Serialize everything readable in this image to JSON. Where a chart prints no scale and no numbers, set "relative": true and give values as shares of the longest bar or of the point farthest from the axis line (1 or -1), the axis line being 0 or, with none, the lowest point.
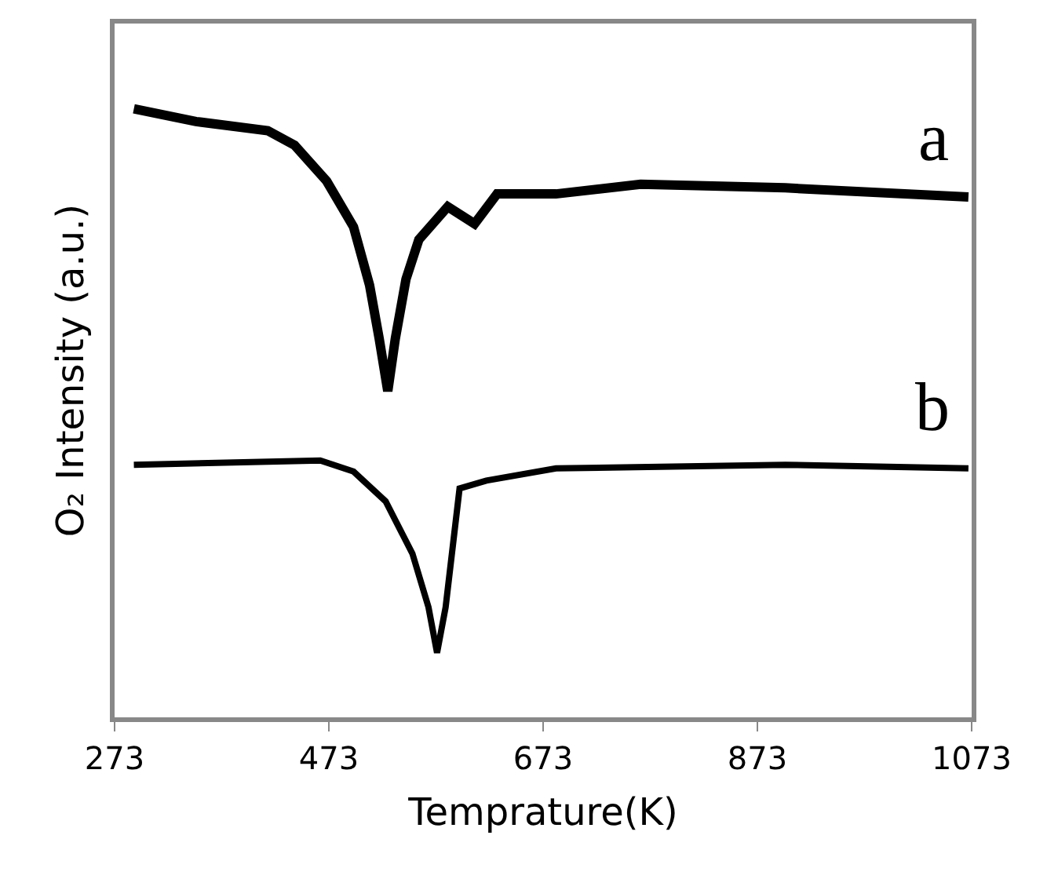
{
  "chart_data": {
    "type": "line",
    "relative": true,
    "xlabel": "Temprature(K)",
    "ylabel": "O₂ Intensity (a.u.)",
    "xlim": [
      273,
      1073
    ],
    "xticks": [
      273,
      473,
      673,
      873,
      1073
    ],
    "legend": false,
    "marker": "none",
    "line_style": "solid",
    "series": [
      {
        "name": "a",
        "color": "#000000",
        "x": [
          291,
          349,
          416,
          441,
          471,
          496,
          511,
          520,
          528,
          535,
          545,
          557,
          584,
          609,
          630,
          685,
          764,
          899,
          1070
        ],
        "values": [
          1,
          0.979,
          0.964,
          0.94,
          0.881,
          0.806,
          0.71,
          0.622,
          0.536,
          0.622,
          0.72,
          0.785,
          0.839,
          0.811,
          0.86,
          0.86,
          0.876,
          0.87,
          0.855
        ]
      },
      {
        "name": "b",
        "color": "#000000",
        "x": [
          291,
          465,
          496,
          526,
          551,
          566,
          574,
          582,
          595,
          620,
          685,
          899,
          1070
        ],
        "values": [
          0.415,
          0.422,
          0.404,
          0.355,
          0.269,
          0.181,
          0.106,
          0.181,
          0.376,
          0.389,
          0.409,
          0.415,
          0.409
        ]
      }
    ]
  }
}
